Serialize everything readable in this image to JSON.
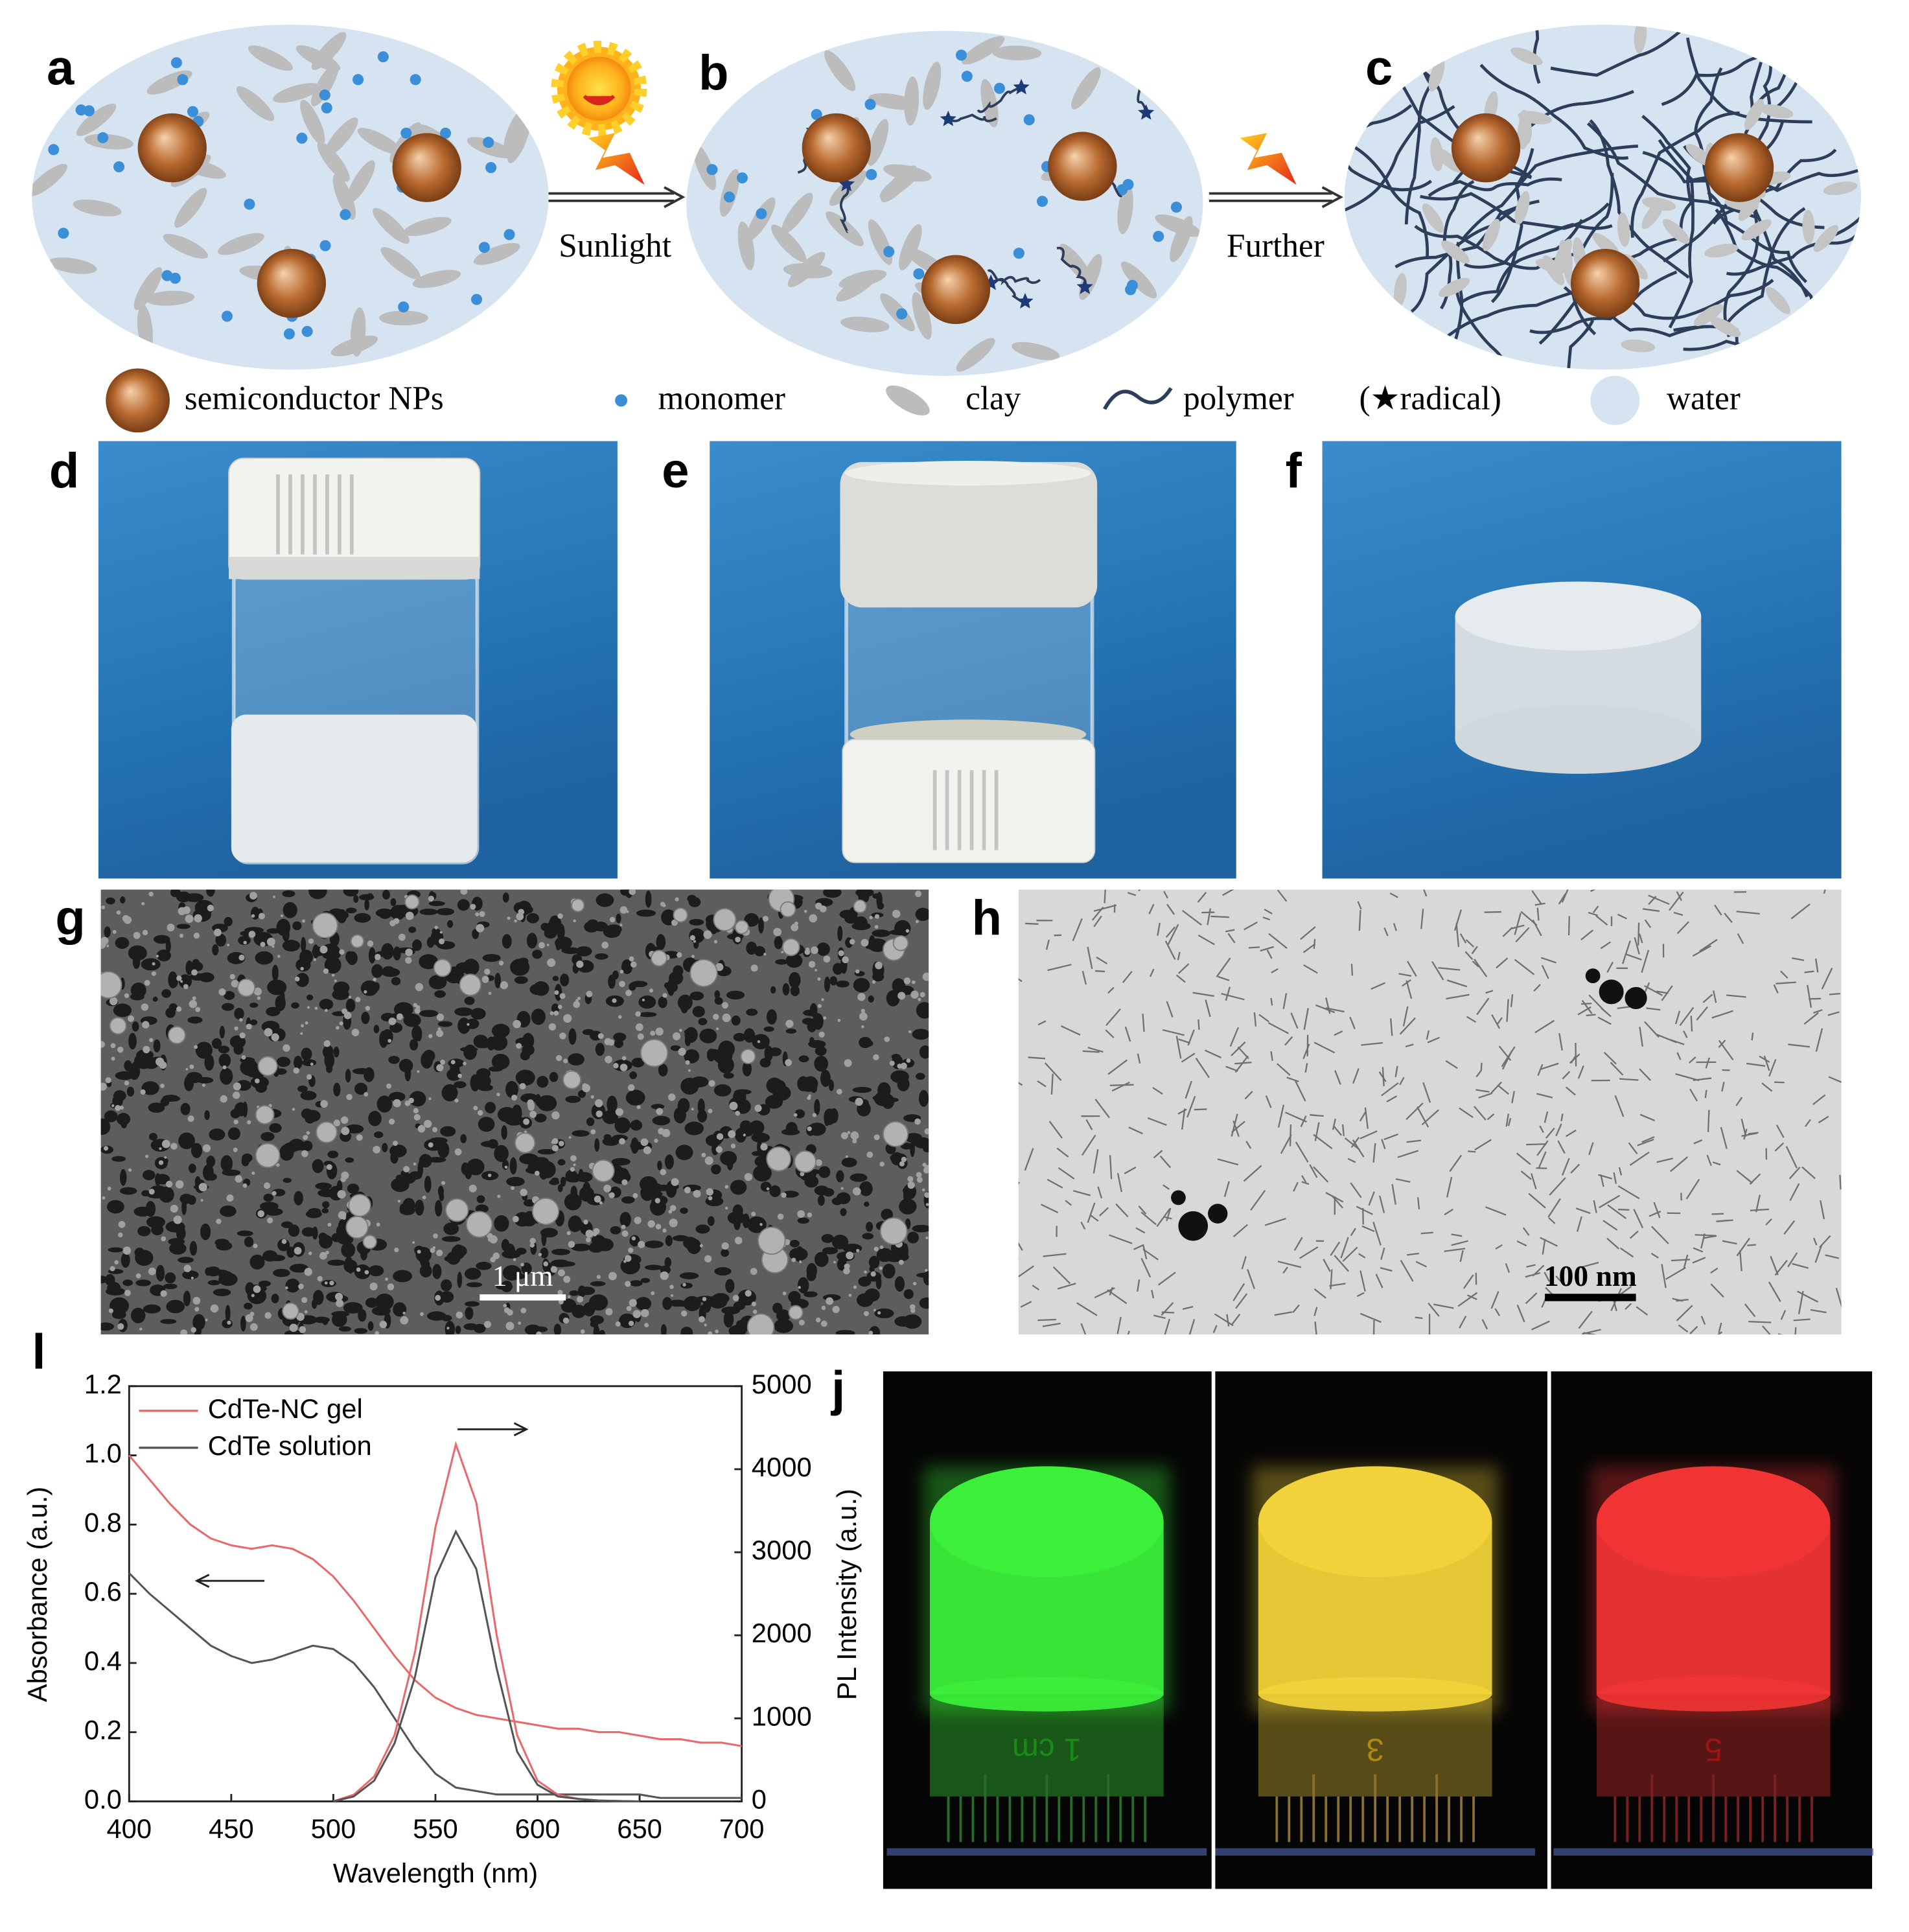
{
  "panel_labels": [
    "a",
    "b",
    "c",
    "d",
    "e",
    "f",
    "g",
    "h",
    "l",
    "j"
  ],
  "schematic": {
    "arrow_labels": [
      "Sunlight",
      "Further"
    ],
    "legend": [
      "semiconductor NPs",
      "monomer",
      "clay",
      "polymer",
      "(★radical)",
      "water"
    ]
  },
  "scale_bars": [
    "1 μm",
    "100 nm"
  ],
  "photo_labels": [
    "1 cm",
    "3",
    "5"
  ],
  "chart_data": {
    "type": "line",
    "x": [
      400,
      410,
      420,
      430,
      440,
      450,
      460,
      470,
      480,
      490,
      500,
      510,
      520,
      530,
      540,
      550,
      560,
      570,
      580,
      590,
      600,
      610,
      620,
      630,
      640,
      650,
      660,
      670,
      680,
      690,
      700
    ],
    "series": [
      {
        "name": "CdTe-NC gel",
        "color": "#e8696b",
        "values": [
          1.0,
          0.93,
          0.86,
          0.8,
          0.76,
          0.74,
          0.73,
          0.74,
          0.73,
          0.7,
          0.65,
          0.58,
          0.5,
          0.42,
          0.35,
          0.3,
          0.27,
          0.25,
          0.24,
          0.23,
          0.22,
          0.21,
          0.21,
          0.2,
          0.2,
          0.19,
          0.18,
          0.18,
          0.17,
          0.17,
          0.16
        ]
      },
      {
        "name": "CdTe solution",
        "color": "#555555",
        "values": [
          0.66,
          0.6,
          0.55,
          0.5,
          0.45,
          0.42,
          0.4,
          0.41,
          0.43,
          0.45,
          0.44,
          0.4,
          0.33,
          0.24,
          0.15,
          0.08,
          0.04,
          0.03,
          0.02,
          0.02,
          0.02,
          0.02,
          0.02,
          0.02,
          0.02,
          0.02,
          0.01,
          0.01,
          0.01,
          0.01,
          0.01
        ]
      },
      {
        "name": "CdTe-NC gel",
        "color": "#e8696b",
        "axis": "y2",
        "values": [
          null,
          null,
          null,
          null,
          null,
          null,
          null,
          null,
          null,
          null,
          0,
          80,
          300,
          800,
          1800,
          3300,
          4300,
          3600,
          2000,
          800,
          250,
          80,
          30,
          10,
          5,
          0,
          null,
          null,
          null,
          null,
          null
        ]
      },
      {
        "name": "CdTe solution",
        "color": "#555555",
        "axis": "y2",
        "values": [
          null,
          null,
          null,
          null,
          null,
          null,
          null,
          null,
          null,
          null,
          0,
          60,
          250,
          700,
          1500,
          2700,
          3250,
          2800,
          1600,
          600,
          200,
          60,
          30,
          10,
          5,
          0,
          null,
          null,
          null,
          null,
          null
        ]
      }
    ],
    "xlim": [
      400,
      700
    ],
    "ylim": [
      0,
      1.2
    ],
    "y2lim": [
      0,
      5000
    ],
    "xticks": [
      400,
      450,
      500,
      550,
      600,
      650,
      700
    ],
    "yticks": [
      {
        "value": 0,
        "label": "0.0"
      },
      0.2,
      0.4,
      0.6,
      0.8,
      {
        "value": 1,
        "label": "1.0"
      },
      1.2
    ],
    "y2ticks": [
      0,
      1000,
      2000,
      3000,
      4000,
      5000
    ],
    "xlabel": "Wavelength (nm)",
    "ylabel": "Absorbance (a.u.)",
    "y2label": "PL Intensity (a.u.)",
    "legend": "upper left"
  }
}
